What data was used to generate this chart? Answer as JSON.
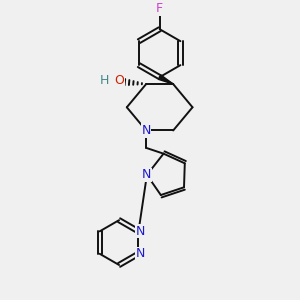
{
  "bg_color": "#f0f0f0",
  "atom_color_N": "#1a1acc",
  "atom_color_O": "#cc2200",
  "atom_color_F": "#cc44cc",
  "atom_color_H": "#448888",
  "bond_color": "#111111",
  "bond_width": 1.4,
  "fig_width": 3.0,
  "fig_height": 3.0,
  "dpi": 100,
  "xlim": [
    -2.5,
    2.5
  ],
  "ylim": [
    -3.8,
    3.8
  ]
}
